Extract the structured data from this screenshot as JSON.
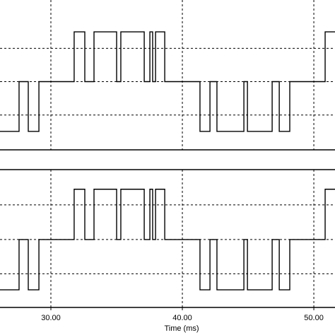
{
  "chart_data": [
    {
      "type": "line",
      "x": [
        26.13,
        27.58,
        27.58,
        28.28,
        28.28,
        29.09,
        29.09,
        31.77,
        31.77,
        32.58,
        32.58,
        33.28,
        33.28,
        35.0,
        35.0,
        35.32,
        35.32,
        37.1,
        37.1,
        37.53,
        37.53,
        37.74,
        37.74,
        37.96,
        37.96,
        38.66,
        38.66,
        41.34,
        41.34,
        42.1,
        42.1,
        42.63,
        42.63,
        44.68,
        44.68,
        44.95,
        44.95,
        46.83,
        46.83,
        47.37,
        47.37,
        48.17,
        48.17,
        50.86,
        50.86,
        51.61
      ],
      "series": [
        {
          "color": "#000000",
          "values": [
            -1,
            -1,
            0,
            0,
            -1,
            -1,
            0,
            0,
            1,
            1,
            0,
            0,
            1,
            1,
            0,
            0,
            1,
            1,
            0,
            0,
            1,
            1,
            0,
            0,
            1,
            1,
            0,
            0,
            -1,
            -1,
            0,
            0,
            -1,
            -1,
            0,
            0,
            -1,
            -1,
            0,
            0,
            -1,
            -1,
            0,
            0,
            1,
            1
          ]
        }
      ],
      "xlim": [
        26.13,
        51.61
      ],
      "ylim": [
        -1.37,
        1.64
      ],
      "yticks": [
        -0.67,
        0,
        0.67
      ],
      "grid": true
    },
    {
      "type": "line",
      "x": [
        26.13,
        27.58,
        27.58,
        28.28,
        28.28,
        29.09,
        29.09,
        31.77,
        31.77,
        32.58,
        32.58,
        33.28,
        33.28,
        35.0,
        35.0,
        35.32,
        35.32,
        37.1,
        37.1,
        37.53,
        37.53,
        37.74,
        37.74,
        37.96,
        37.96,
        38.66,
        38.66,
        41.34,
        41.34,
        42.1,
        42.1,
        42.63,
        42.63,
        44.68,
        44.68,
        44.95,
        44.95,
        46.83,
        46.83,
        47.37,
        47.37,
        48.17,
        48.17,
        50.86,
        50.86,
        51.61
      ],
      "series": [
        {
          "color": "#000000",
          "values": [
            -1,
            -1,
            0,
            0,
            -1,
            -1,
            0,
            0,
            1,
            1,
            0,
            0,
            1,
            1,
            0,
            0,
            1,
            1,
            0,
            0,
            1,
            1,
            0,
            0,
            1,
            1,
            0,
            0,
            -1,
            -1,
            0,
            0,
            -1,
            -1,
            0,
            0,
            -1,
            -1,
            0,
            0,
            -1,
            -1,
            0,
            0,
            1,
            1
          ]
        }
      ],
      "xlim": [
        26.13,
        51.61
      ],
      "ylim": [
        -1.35,
        1.39
      ],
      "yticks": [
        -0.68,
        0,
        0.69
      ],
      "xticks": [
        {
          "value": 30,
          "label": "30.00"
        },
        {
          "value": 40,
          "label": "40.00"
        },
        {
          "value": 50,
          "label": "50.00"
        }
      ],
      "xlabel": "Time (ms)",
      "grid": true
    }
  ]
}
